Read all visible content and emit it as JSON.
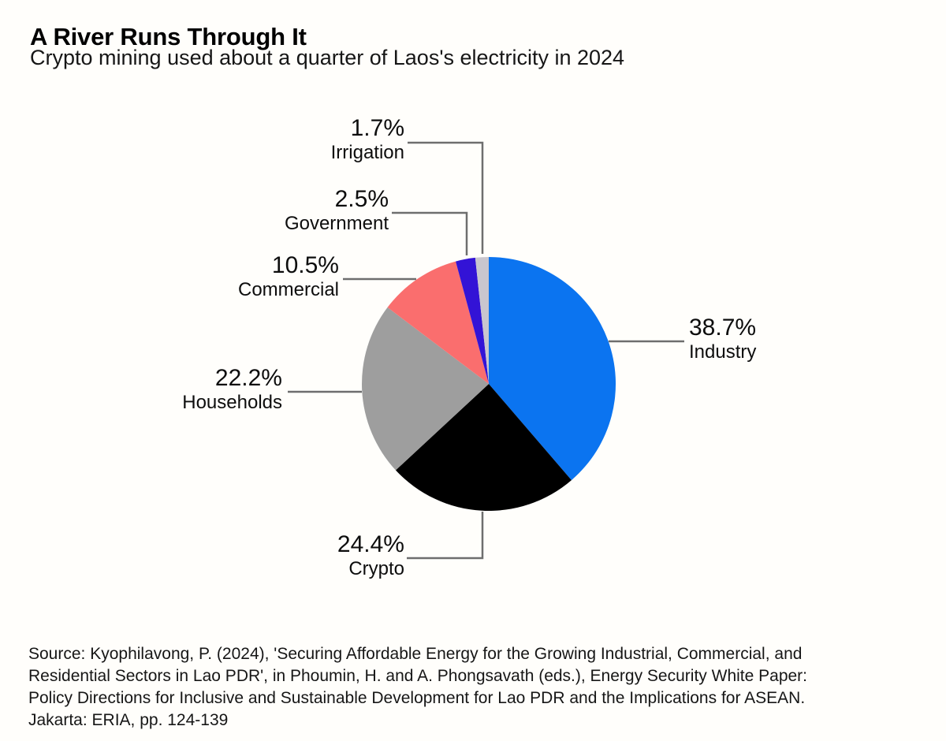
{
  "header": {
    "title": "A River Runs Through It",
    "subtitle": "Crypto mining used about a quarter of Laos's electricity in 2024"
  },
  "chart_data": {
    "type": "pie",
    "title": "A River Runs Through It",
    "subtitle": "Crypto mining used about a quarter of Laos's electricity in 2024",
    "unit": "%",
    "start_angle_deg": 0,
    "direction": "clockwise",
    "legend_position": "none",
    "labels_style": "outside-with-leader-lines",
    "slices": [
      {
        "label": "Industry",
        "value": 38.7,
        "pct": "38.7%",
        "color": "#0b74f0"
      },
      {
        "label": "Crypto",
        "value": 24.4,
        "pct": "24.4%",
        "color": "#000000"
      },
      {
        "label": "Households",
        "value": 22.2,
        "pct": "22.2%",
        "color": "#9e9e9e"
      },
      {
        "label": "Commercial",
        "value": 10.5,
        "pct": "10.5%",
        "color": "#fa6e6e"
      },
      {
        "label": "Government",
        "value": 2.5,
        "pct": "2.5%",
        "color": "#3313d6"
      },
      {
        "label": "Irrigation",
        "value": 1.7,
        "pct": "1.7%",
        "color": "#c9c6ce"
      }
    ],
    "leader_line_color": "#6e6e6e"
  },
  "source": {
    "lines": [
      "Source: Kyophilavong, P. (2024), 'Securing Affordable Energy for the Growing Industrial, Commercial, and",
      "Residential Sectors in Lao PDR', in Phoumin, H. and A. Phongsavath (eds.), Energy Security White Paper:",
      "Policy Directions for Inclusive and Sustainable Development for Lao PDR and the Implications for ASEAN.",
      "Jakarta: ERIA, pp. 124-139"
    ]
  }
}
